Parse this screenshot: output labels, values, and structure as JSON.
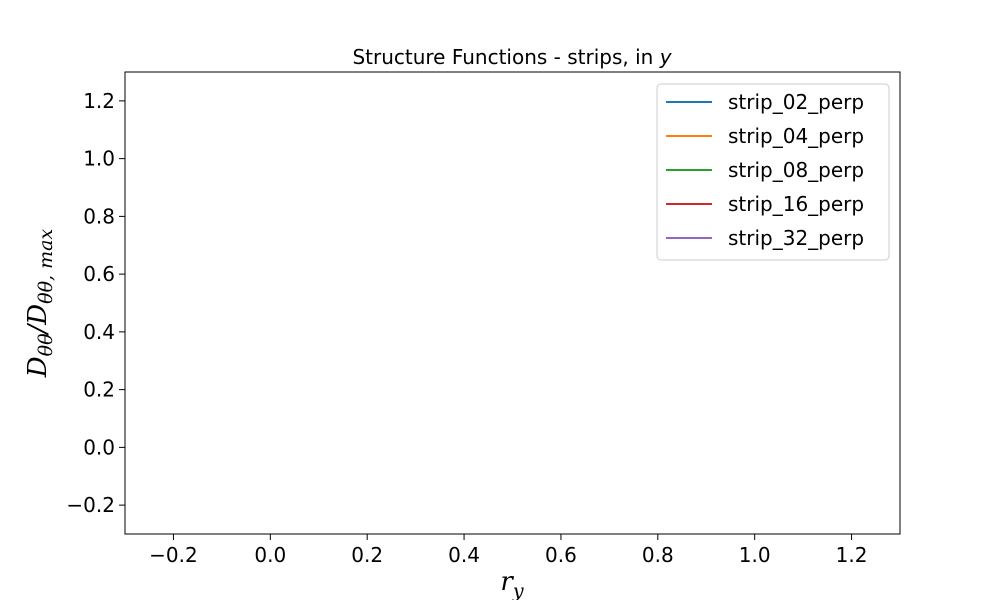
{
  "chart_data": {
    "type": "line",
    "title": "Structure Functions - strips, in",
    "title_var": "y",
    "xlabel_base": "r",
    "xlabel_sub": "y",
    "ylabel_num": "D",
    "ylabel_num_sub": "θθ",
    "ylabel_den": "D",
    "ylabel_den_sub": "θθ, max",
    "xlim": [
      -0.3,
      1.3
    ],
    "ylim": [
      -0.3,
      1.3
    ],
    "x_ticks": [
      -0.2,
      0.0,
      0.2,
      0.4,
      0.6,
      0.8,
      1.0,
      1.2
    ],
    "x_tick_labels": [
      "−0.2",
      "0.0",
      "0.2",
      "0.4",
      "0.6",
      "0.8",
      "1.0",
      "1.2"
    ],
    "y_ticks": [
      -0.2,
      0.0,
      0.2,
      0.4,
      0.6,
      0.8,
      1.0,
      1.2
    ],
    "y_tick_labels": [
      "−0.2",
      "0.0",
      "0.2",
      "0.4",
      "0.6",
      "0.8",
      "1.0",
      "1.2"
    ],
    "grid": false,
    "legend_position": "top-right",
    "series": [
      {
        "name": "strip_02_perp",
        "color": "#1f77b4",
        "x": [],
        "y": []
      },
      {
        "name": "strip_04_perp",
        "color": "#ff7f0e",
        "x": [],
        "y": []
      },
      {
        "name": "strip_08_perp",
        "color": "#2ca02c",
        "x": [],
        "y": []
      },
      {
        "name": "strip_16_perp",
        "color": "#d62728",
        "x": [],
        "y": []
      },
      {
        "name": "strip_32_perp",
        "color": "#9467bd",
        "x": [],
        "y": []
      }
    ]
  }
}
